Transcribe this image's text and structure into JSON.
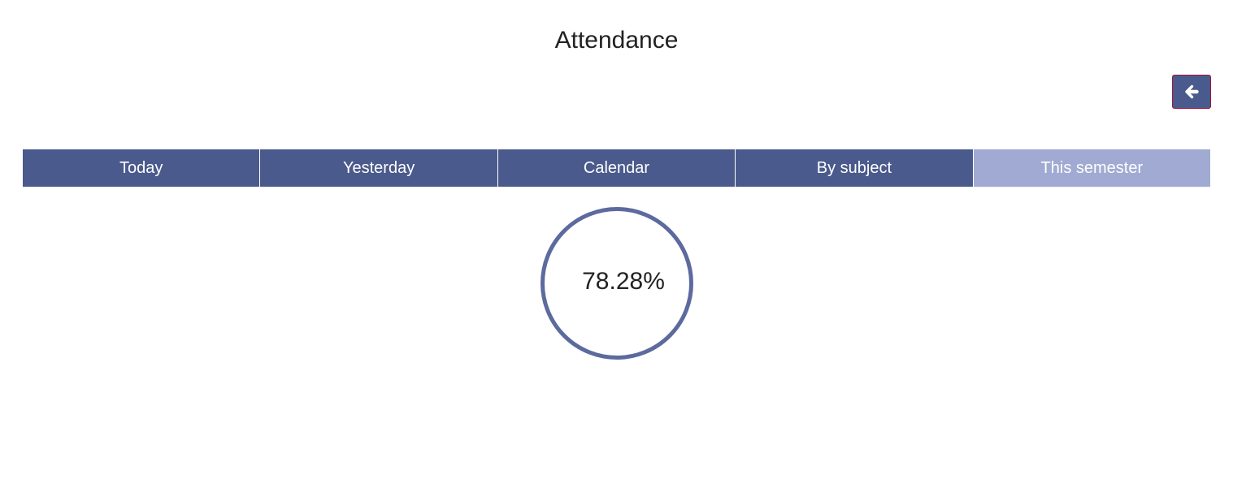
{
  "header": {
    "title": "Attendance"
  },
  "back_button": {
    "icon": "arrow-left-icon"
  },
  "tabs": [
    {
      "label": "Today",
      "active": false
    },
    {
      "label": "Yesterday",
      "active": false
    },
    {
      "label": "Calendar",
      "active": false
    },
    {
      "label": "By subject",
      "active": false
    },
    {
      "label": "This semester",
      "active": true
    }
  ],
  "summary": {
    "attendance_percent": "78.28%"
  },
  "colors": {
    "primary": "#4a5a8c",
    "active_tab": "#a0aad2",
    "ring": "#5c6a9e",
    "button_border": "#a0143c"
  }
}
